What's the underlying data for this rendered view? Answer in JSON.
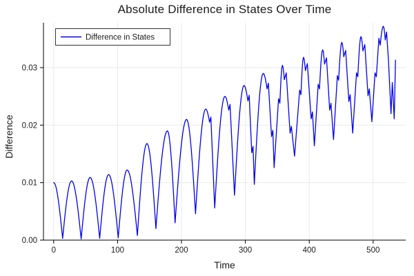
{
  "title": "Absolute Difference in States Over Time",
  "axes": {
    "x_label": "Time",
    "y_label": "Difference"
  },
  "legend": {
    "label": "Difference in States"
  },
  "colors": {
    "line": "#0000ee",
    "grid": "#e7e7e7",
    "spine": "#000000",
    "tick_text": "#1a1a1a",
    "legend_border": "#333333",
    "background": "#ffffff"
  },
  "chart_data": {
    "type": "line",
    "title": "Absolute Difference in States Over Time",
    "xlabel": "Time",
    "ylabel": "Difference",
    "legend_entries": [
      "Difference in States"
    ],
    "legend_position": "top-left",
    "grid": true,
    "xlim": [
      -16,
      551
    ],
    "ylim": [
      0,
      0.0378
    ],
    "x_ticks": [
      {
        "v": 0,
        "label": "0"
      },
      {
        "v": 100,
        "label": "100"
      },
      {
        "v": 200,
        "label": "200"
      },
      {
        "v": 300,
        "label": "300"
      },
      {
        "v": 400,
        "label": "400"
      },
      {
        "v": 500,
        "label": "500"
      }
    ],
    "y_ticks": [
      {
        "v": 0,
        "label": "0.00"
      },
      {
        "v": 0.01,
        "label": "0.01"
      },
      {
        "v": 0.02,
        "label": "0.02"
      },
      {
        "v": 0.03,
        "label": "0.03"
      }
    ],
    "interpolation": "keypoints: [t, value, kind] where kind p=rounded extremum, v=sharp cusp minimum, l=linear wiggle vertex",
    "series": [
      {
        "name": "Difference in States",
        "points": [
          [
            0,
            0.01,
            "p"
          ],
          [
            14,
            0.0003,
            "v"
          ],
          [
            28,
            0.0103,
            "p"
          ],
          [
            43,
            0.0002,
            "v"
          ],
          [
            57,
            0.0109,
            "p"
          ],
          [
            72,
            0.0003,
            "v"
          ],
          [
            86,
            0.0114,
            "p"
          ],
          [
            101,
            0.0004,
            "v"
          ],
          [
            115,
            0.0122,
            "p"
          ],
          [
            131,
            0.0008,
            "v"
          ],
          [
            146,
            0.0168,
            "p"
          ],
          [
            160,
            0.002,
            "v"
          ],
          [
            178,
            0.019,
            "p"
          ],
          [
            190,
            0.003,
            "v"
          ],
          [
            208,
            0.021,
            "p"
          ],
          [
            222,
            0.0046,
            "v"
          ],
          [
            238,
            0.0228,
            "p"
          ],
          [
            244,
            0.0205,
            "l"
          ],
          [
            246,
            0.0214,
            "l"
          ],
          [
            252,
            0.0056,
            "v"
          ],
          [
            268,
            0.025,
            "p"
          ],
          [
            274,
            0.0226,
            "l"
          ],
          [
            276,
            0.0236,
            "l"
          ],
          [
            283,
            0.0078,
            "v"
          ],
          [
            298,
            0.0269,
            "p"
          ],
          [
            304,
            0.0242,
            "l"
          ],
          [
            306,
            0.0252,
            "l"
          ],
          [
            310,
            0.0152,
            "l"
          ],
          [
            312,
            0.0163,
            "l"
          ],
          [
            314,
            0.0097,
            "v"
          ],
          [
            328,
            0.029,
            "p"
          ],
          [
            334,
            0.0263,
            "l"
          ],
          [
            336,
            0.0273,
            "l"
          ],
          [
            341,
            0.018,
            "l"
          ],
          [
            343,
            0.0191,
            "l"
          ],
          [
            345,
            0.0126,
            "v"
          ],
          [
            352,
            0.0246,
            "l"
          ],
          [
            354,
            0.0238,
            "l"
          ],
          [
            358,
            0.0304,
            "p"
          ],
          [
            361,
            0.0279,
            "l"
          ],
          [
            364,
            0.0291,
            "l"
          ],
          [
            370,
            0.0186,
            "l"
          ],
          [
            372,
            0.0198,
            "l"
          ],
          [
            377,
            0.0146,
            "v"
          ],
          [
            385,
            0.0261,
            "l"
          ],
          [
            387,
            0.0253,
            "l"
          ],
          [
            391,
            0.0318,
            "p"
          ],
          [
            394,
            0.0295,
            "l"
          ],
          [
            397,
            0.0307,
            "l"
          ],
          [
            403,
            0.0211,
            "l"
          ],
          [
            405,
            0.0223,
            "l"
          ],
          [
            408,
            0.0164,
            "v"
          ],
          [
            414,
            0.0271,
            "l"
          ],
          [
            416,
            0.0263,
            "l"
          ],
          [
            421,
            0.0331,
            "p"
          ],
          [
            424,
            0.0306,
            "l"
          ],
          [
            427,
            0.0317,
            "l"
          ],
          [
            432,
            0.0226,
            "l"
          ],
          [
            434,
            0.0238,
            "l"
          ],
          [
            438,
            0.0175,
            "v"
          ],
          [
            444,
            0.0286,
            "l"
          ],
          [
            446,
            0.0278,
            "l"
          ],
          [
            451,
            0.0344,
            "p"
          ],
          [
            454,
            0.0319,
            "l"
          ],
          [
            457,
            0.033,
            "l"
          ],
          [
            462,
            0.0241,
            "l"
          ],
          [
            464,
            0.0253,
            "l"
          ],
          [
            468,
            0.0186,
            "v"
          ],
          [
            474,
            0.0291,
            "l"
          ],
          [
            476,
            0.0284,
            "l"
          ],
          [
            481,
            0.0354,
            "p"
          ],
          [
            484,
            0.0329,
            "l"
          ],
          [
            487,
            0.034,
            "l"
          ],
          [
            492,
            0.0251,
            "l"
          ],
          [
            494,
            0.0263,
            "l"
          ],
          [
            498,
            0.0206,
            "v"
          ],
          [
            503,
            0.0291,
            "l"
          ],
          [
            505,
            0.0284,
            "l"
          ],
          [
            509,
            0.0351,
            "l"
          ],
          [
            511,
            0.0339,
            "l"
          ],
          [
            516,
            0.0372,
            "p"
          ],
          [
            519,
            0.0348,
            "l"
          ],
          [
            521,
            0.0362,
            "l"
          ],
          [
            524,
            0.0313,
            "l"
          ],
          [
            528,
            0.022,
            "v"
          ],
          [
            530,
            0.0274,
            "l"
          ],
          [
            533,
            0.0211,
            "v"
          ],
          [
            535,
            0.0313,
            "l"
          ]
        ]
      }
    ]
  }
}
